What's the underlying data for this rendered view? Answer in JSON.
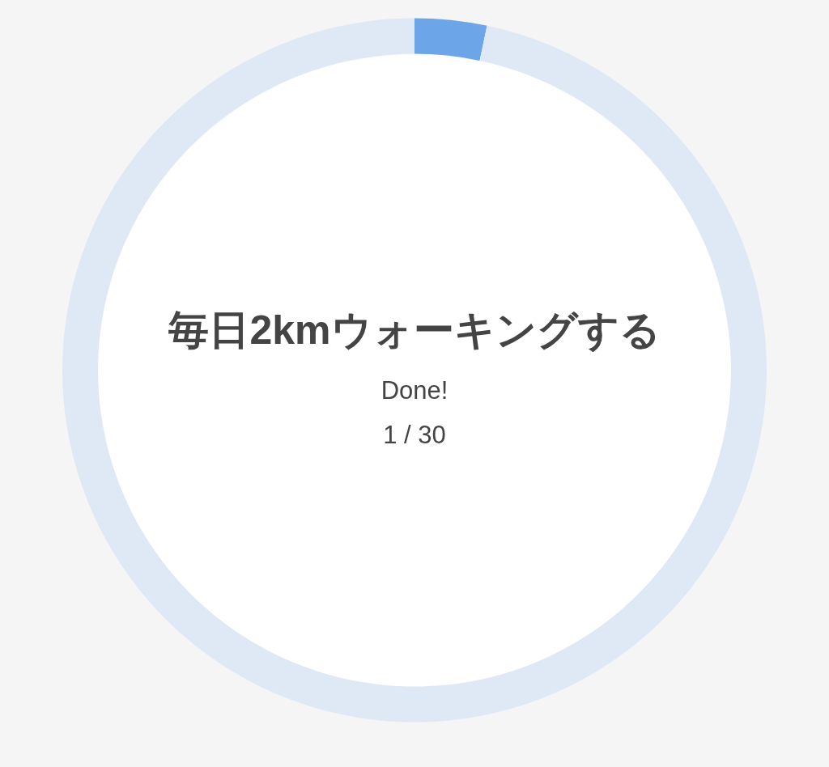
{
  "chart_data": {
    "type": "donut",
    "title": "毎日2kmウォーキングする",
    "categories": [
      null,
      null
    ],
    "values": [
      3.3,
      96.7
    ],
    "colors": [
      "#6ca6e9",
      "#dfe9f5"
    ],
    "annotations": [
      "Done!",
      "1 / 30"
    ]
  }
}
